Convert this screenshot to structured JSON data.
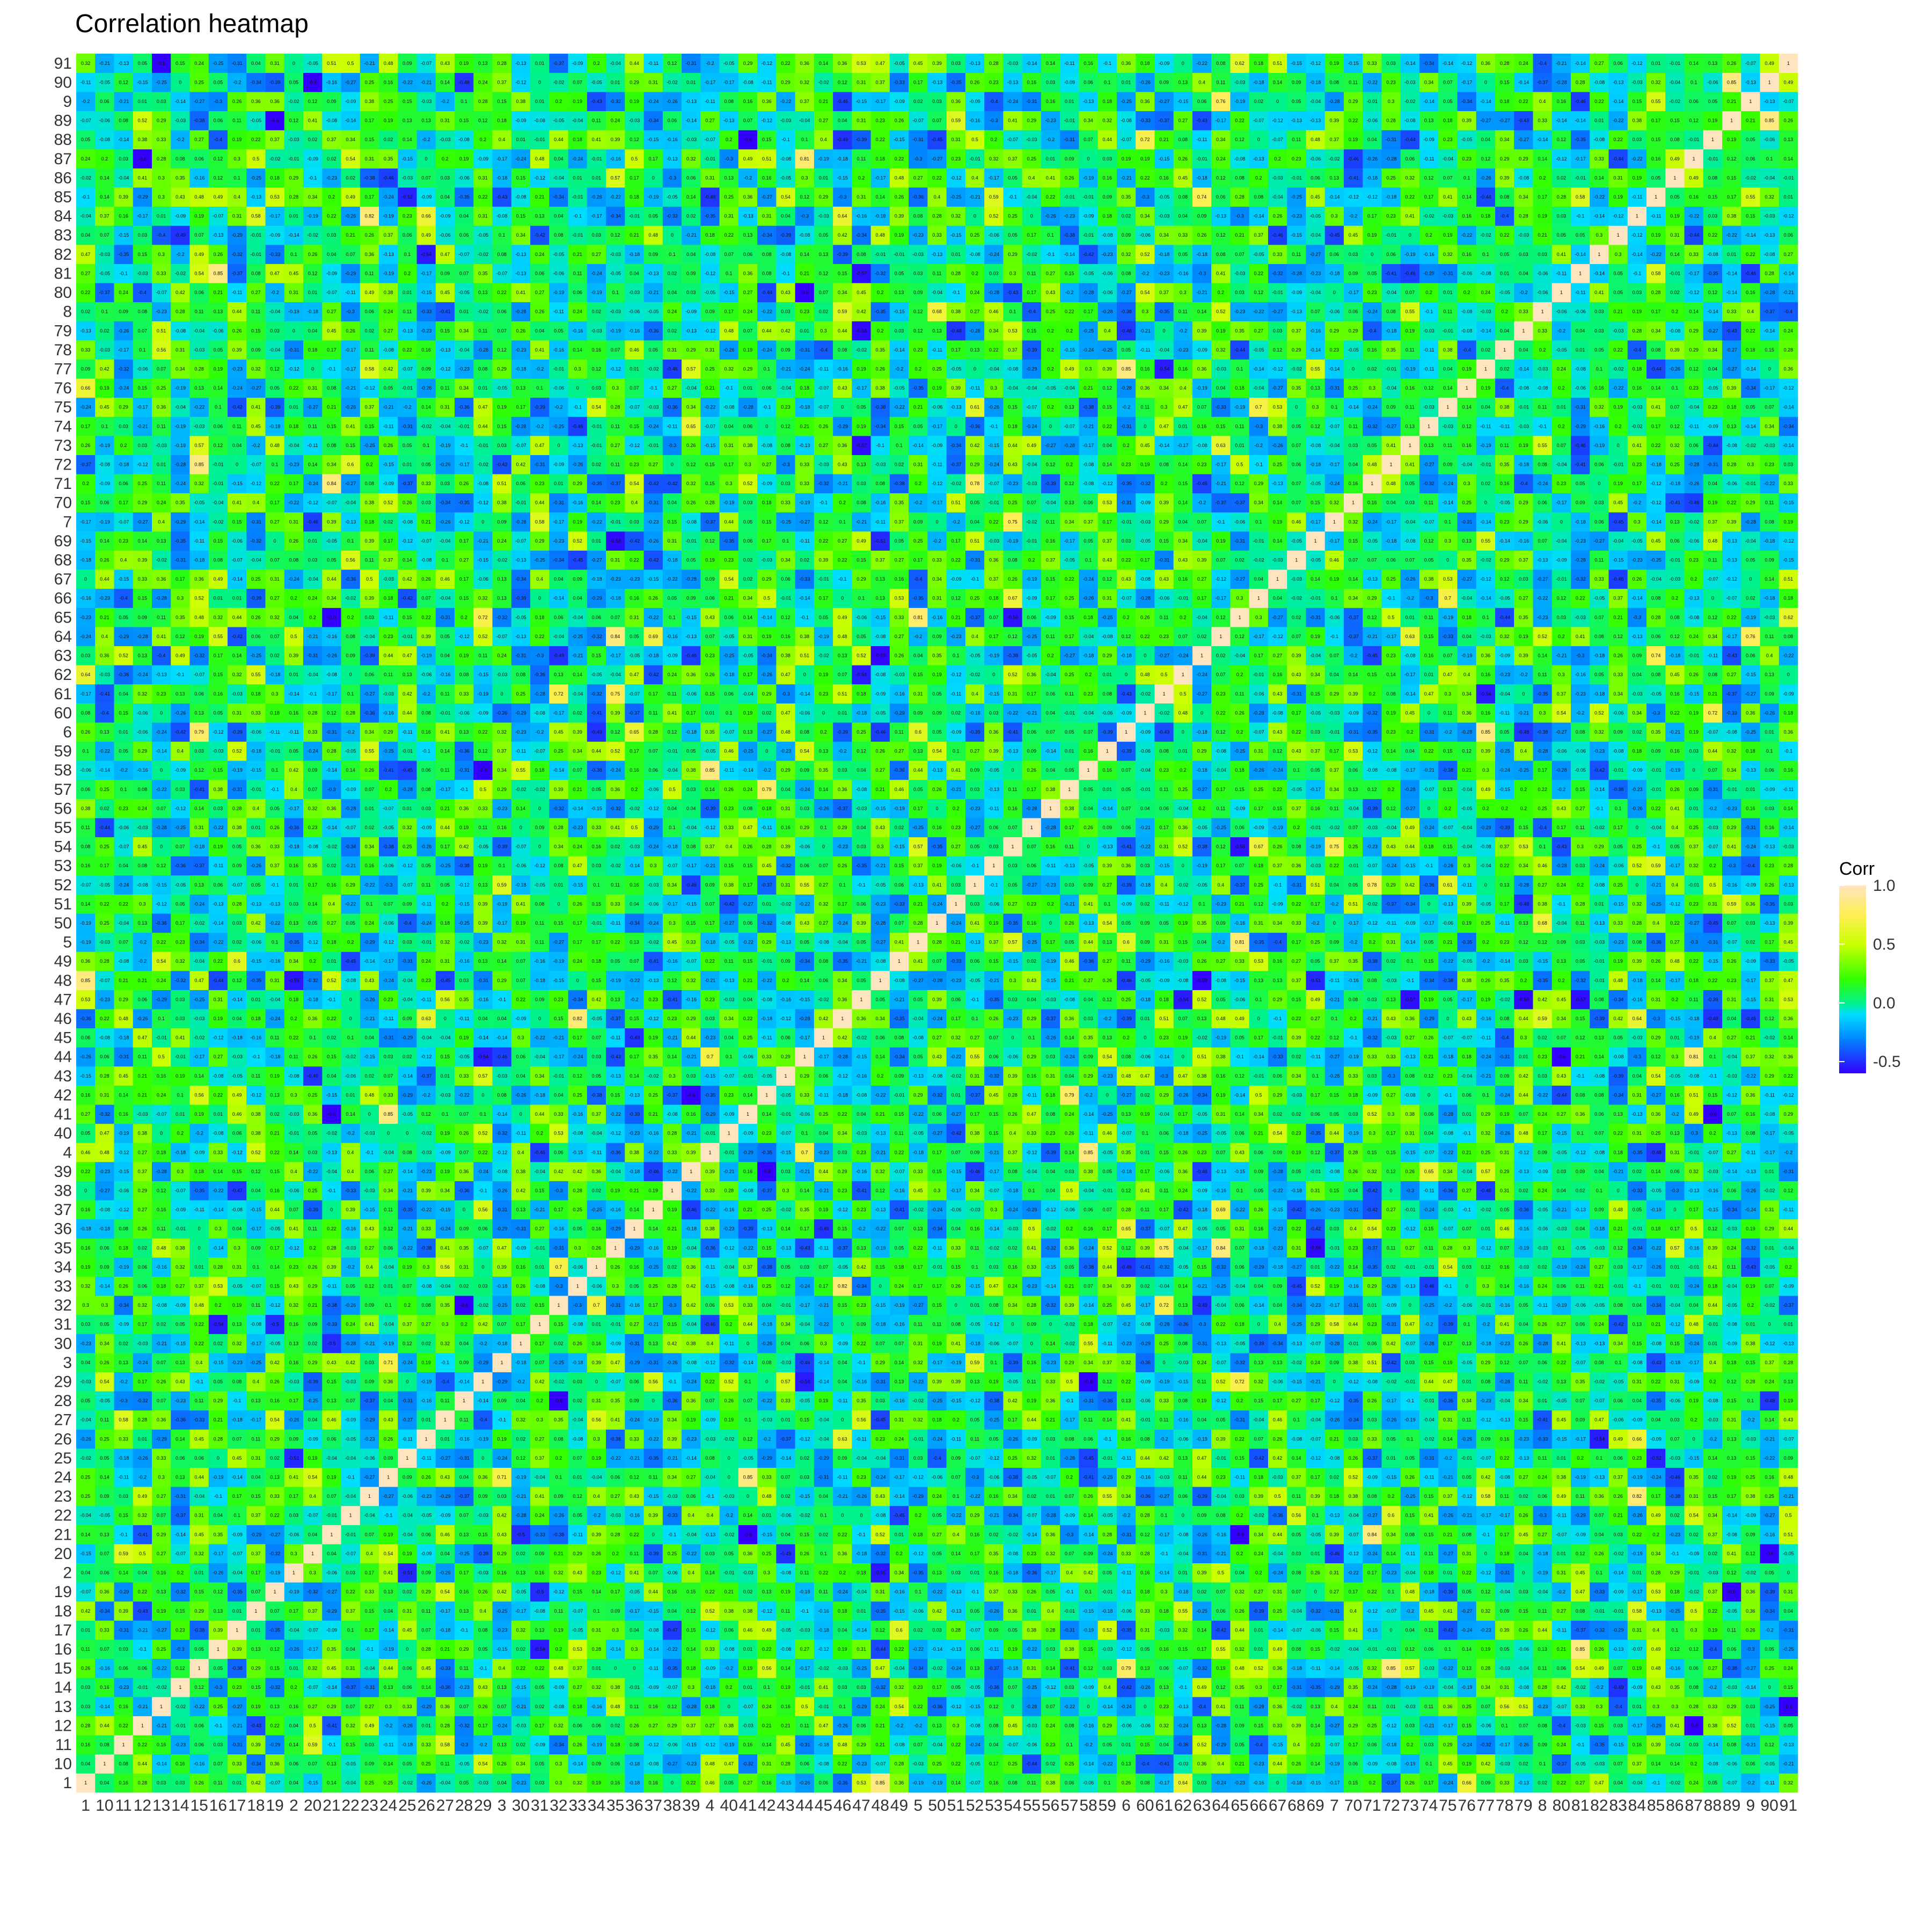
{
  "chart_data": {
    "type": "heatmap",
    "title": "Correlation heatmap",
    "x_labels": [
      "1",
      "10",
      "11",
      "12",
      "13",
      "14",
      "15",
      "16",
      "17",
      "18",
      "19",
      "2",
      "20",
      "21",
      "22",
      "23",
      "24",
      "25",
      "26",
      "27",
      "28",
      "29",
      "3",
      "30",
      "31",
      "32",
      "33",
      "34",
      "35",
      "36",
      "37",
      "38",
      "39",
      "4",
      "40",
      "41",
      "42",
      "43",
      "44",
      "45",
      "46",
      "47",
      "48",
      "49",
      "5",
      "50",
      "51",
      "52",
      "53",
      "54",
      "55",
      "56",
      "57",
      "58",
      "59",
      "6",
      "60",
      "61",
      "62",
      "63",
      "64",
      "65",
      "66",
      "67",
      "68",
      "69",
      "7",
      "70",
      "71",
      "72",
      "73",
      "74",
      "75",
      "76",
      "77",
      "78",
      "79",
      "8",
      "80",
      "81",
      "82",
      "83",
      "84",
      "85",
      "86",
      "87",
      "88",
      "89",
      "9",
      "90",
      "91"
    ],
    "y_labels_bottom_to_top": [
      "1",
      "10",
      "11",
      "12",
      "13",
      "14",
      "15",
      "16",
      "17",
      "18",
      "19",
      "2",
      "20",
      "21",
      "22",
      "23",
      "24",
      "25",
      "26",
      "27",
      "28",
      "29",
      "3",
      "30",
      "31",
      "32",
      "33",
      "34",
      "35",
      "36",
      "37",
      "38",
      "39",
      "4",
      "40",
      "41",
      "42",
      "43",
      "44",
      "45",
      "46",
      "47",
      "48",
      "49",
      "5",
      "50",
      "51",
      "52",
      "53",
      "54",
      "55",
      "56",
      "57",
      "58",
      "59",
      "6",
      "60",
      "61",
      "62",
      "63",
      "64",
      "65",
      "66",
      "67",
      "68",
      "69",
      "7",
      "70",
      "71",
      "72",
      "73",
      "74",
      "75",
      "76",
      "77",
      "78",
      "79",
      "8",
      "80",
      "81",
      "82",
      "83",
      "84",
      "85",
      "86",
      "87",
      "88",
      "89",
      "9",
      "90",
      "91"
    ],
    "diagonal_value": 1,
    "value_range": [
      -0.6,
      1.0
    ],
    "cell_labels": "correlation value printed in each cell, rounded to 2 decimals",
    "colorscale": [
      {
        "value": -0.6,
        "color": "#3300ff"
      },
      {
        "value": -0.3,
        "color": "#0088ff"
      },
      {
        "value": -0.1,
        "color": "#00ddff"
      },
      {
        "value": 0.0,
        "color": "#00f28a"
      },
      {
        "value": 0.2,
        "color": "#33ff00"
      },
      {
        "value": 0.5,
        "color": "#ccff00"
      },
      {
        "value": 0.75,
        "color": "#ffee55"
      },
      {
        "value": 1.0,
        "color": "#ffe4c0"
      }
    ],
    "legend": {
      "title": "Corr",
      "ticks": [
        "1.0",
        "0.5",
        "0.0",
        "-0.5"
      ],
      "tick_values": [
        1.0,
        0.5,
        0.0,
        -0.5
      ],
      "placement": "right"
    },
    "matrix_note": "values estimated; off-diagonal correlations mostly between -0.5 and 0.8",
    "seed": 91
  }
}
